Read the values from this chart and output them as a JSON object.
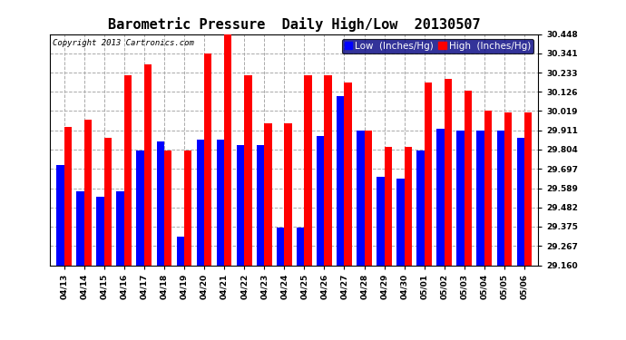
{
  "title": "Barometric Pressure  Daily High/Low  20130507",
  "copyright": "Copyright 2013 Cartronics.com",
  "legend_low": "Low  (Inches/Hg)",
  "legend_high": "High  (Inches/Hg)",
  "dates": [
    "04/13",
    "04/14",
    "04/15",
    "04/16",
    "04/17",
    "04/18",
    "04/19",
    "04/20",
    "04/21",
    "04/22",
    "04/23",
    "04/24",
    "04/25",
    "04/26",
    "04/27",
    "04/28",
    "04/29",
    "04/30",
    "05/01",
    "05/02",
    "05/03",
    "05/04",
    "05/05",
    "05/06"
  ],
  "low_values": [
    29.72,
    29.57,
    29.54,
    29.57,
    29.8,
    29.85,
    29.32,
    29.86,
    29.86,
    29.83,
    29.83,
    29.37,
    29.37,
    29.88,
    30.1,
    29.91,
    29.65,
    29.64,
    29.8,
    29.92,
    29.91,
    29.91,
    29.91,
    29.87
  ],
  "high_values": [
    29.93,
    29.97,
    29.87,
    30.22,
    30.28,
    29.8,
    29.8,
    30.34,
    30.45,
    30.22,
    29.95,
    29.95,
    30.22,
    30.22,
    30.18,
    29.91,
    29.82,
    29.82,
    30.18,
    30.2,
    30.13,
    30.02,
    30.01,
    30.01
  ],
  "ymin": 29.16,
  "ymax": 30.448,
  "yticks": [
    29.16,
    29.267,
    29.375,
    29.482,
    29.589,
    29.697,
    29.804,
    29.911,
    30.019,
    30.126,
    30.233,
    30.341,
    30.448
  ],
  "bar_width": 0.38,
  "low_color": "#0000ff",
  "high_color": "#ff0000",
  "bg_color": "#ffffff",
  "grid_color": "#aaaaaa",
  "title_fontsize": 11,
  "tick_fontsize": 6.5,
  "legend_fontsize": 7.5
}
